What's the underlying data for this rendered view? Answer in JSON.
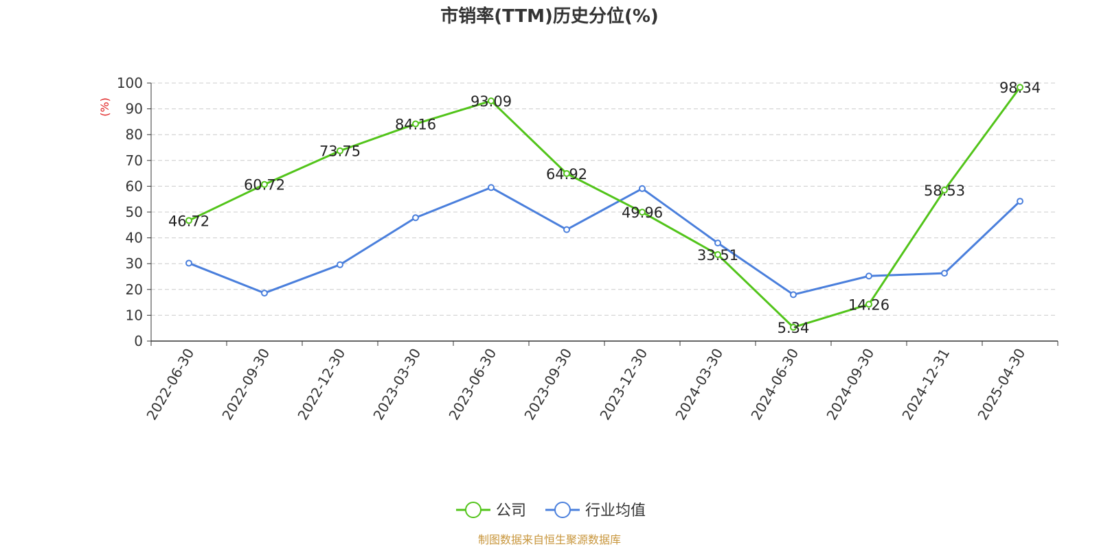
{
  "chart_data": {
    "type": "line",
    "title": "市销率(TTM)历史分位(%)",
    "ylabel": "(%)",
    "xlabel": "",
    "categories": [
      "2022-06-30",
      "2022-09-30",
      "2022-12-30",
      "2023-03-30",
      "2023-06-30",
      "2023-09-30",
      "2023-12-30",
      "2024-03-30",
      "2024-06-30",
      "2024-09-30",
      "2024-12-31",
      "2025-04-30"
    ],
    "ylim": [
      0,
      100
    ],
    "yticks": [
      "0",
      "10",
      "20",
      "30",
      "40",
      "50",
      "60",
      "70",
      "80",
      "90",
      "100"
    ],
    "grid": true,
    "legend_position": "bottom-center",
    "series": [
      {
        "name": "公司",
        "color": "#52c41a",
        "values": [
          46.72,
          60.72,
          73.75,
          84.16,
          93.09,
          64.92,
          49.96,
          33.51,
          5.34,
          14.26,
          58.53,
          98.34
        ],
        "labels": [
          "46.72",
          "60.72",
          "73.75",
          "84.16",
          "93.09",
          "64.92",
          "49.96",
          "33.51",
          "5.34",
          "14.26",
          "58.53",
          "98.34"
        ]
      },
      {
        "name": "行业均值",
        "color": "#4a7fdc",
        "values": [
          30.2,
          18.6,
          29.6,
          47.8,
          59.5,
          43.2,
          59.1,
          38.0,
          18.0,
          25.2,
          26.3,
          54.2
        ]
      }
    ]
  },
  "source_text": "制图数据来自恒生聚源数据库",
  "colors": {
    "title": "#333333",
    "ylabel": "#e02020",
    "source": "#c8963c",
    "grid": "#cccccc",
    "axis": "#333333"
  }
}
